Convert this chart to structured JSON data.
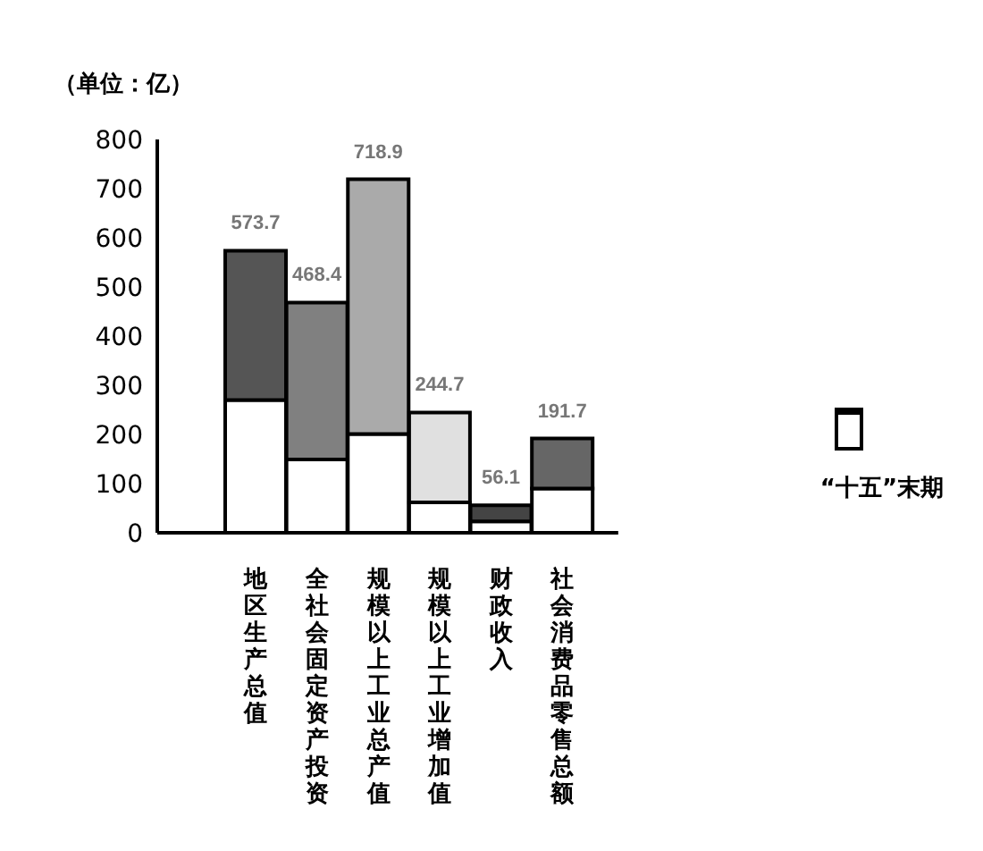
{
  "chart_data": {
    "type": "bar",
    "ylabel": "（单位：亿）",
    "categories": [
      "地区生产总值",
      "全社会固定资产投资",
      "规模以上工业总产值",
      "规模以上工业增加值",
      "财政收入",
      "社会消费品零售总额"
    ],
    "series": [
      {
        "name": "“十五”末期",
        "color": "#ffffff",
        "values": [
          270,
          149,
          201,
          62,
          23,
          90
        ]
      },
      {
        "colors": [
          "#555555",
          "#808080",
          "#aaaaaa",
          "#e0e0e0",
          "#444444",
          "#666666"
        ],
        "values": [
          303.7,
          319.4,
          517.9,
          182.7,
          33.1,
          101.7
        ]
      }
    ],
    "stacked": true,
    "totals": [
      "573.7",
      "468.4",
      "718.9",
      "244.7",
      "56.1",
      "191.7"
    ],
    "ylim": [
      0,
      800
    ],
    "yticks": [
      0,
      100,
      200,
      300,
      400,
      500,
      600,
      700,
      800
    ],
    "grid": false,
    "legend": "right"
  }
}
